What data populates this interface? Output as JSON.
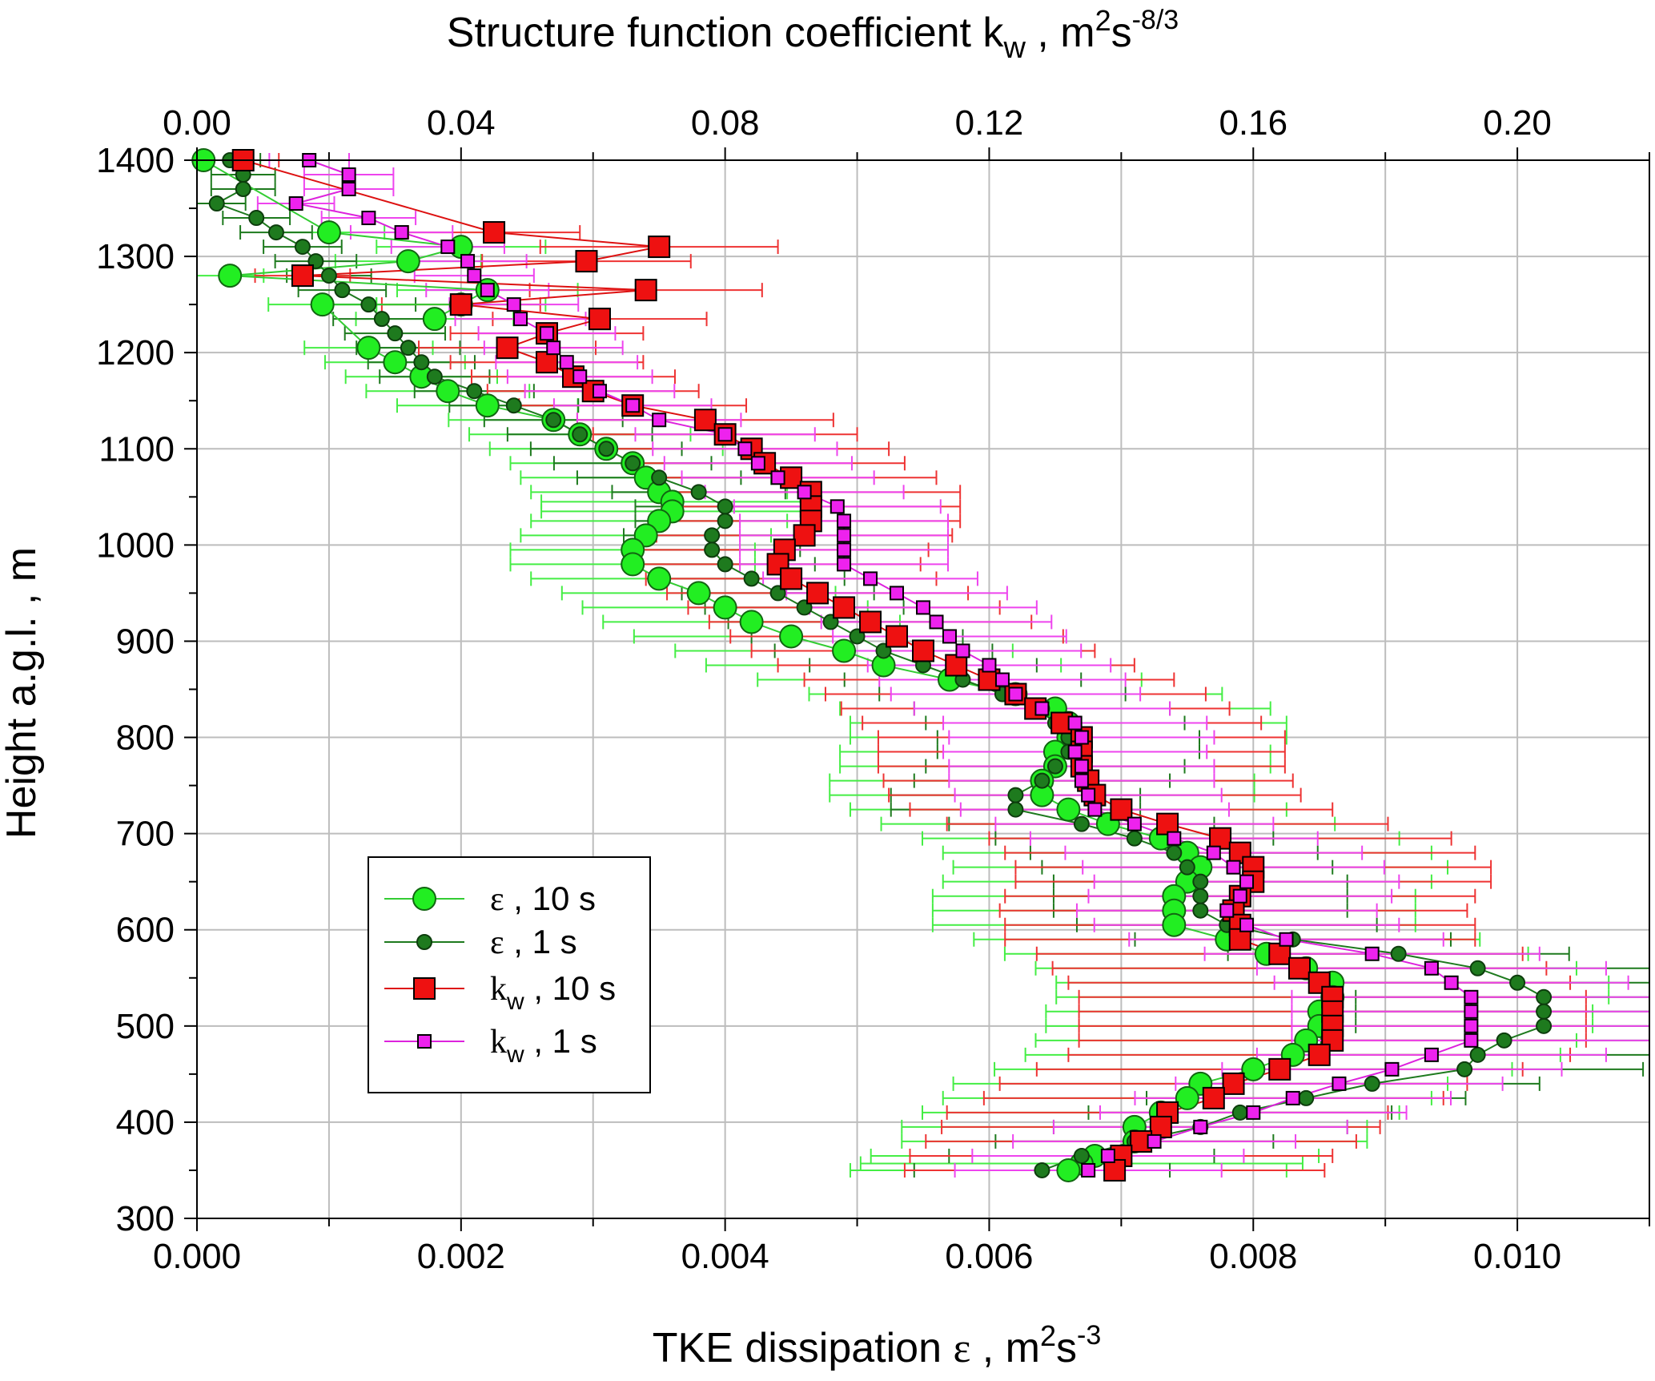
{
  "chart_data": {
    "type": "scatter",
    "top_axis": {
      "label_main": "Structure function coefficient k",
      "label_sub": "w",
      "label_unit_pre": " , m",
      "label_sup1": "2",
      "label_unit_mid": "s",
      "label_sup2": "-8/3",
      "xlim": [
        0.0,
        0.22
      ],
      "ticks": [
        "0.00",
        "0.04",
        "0.08",
        "0.12",
        "0.16",
        "0.20"
      ],
      "tick_values": [
        0.0,
        0.04,
        0.08,
        0.12,
        0.16,
        0.2
      ]
    },
    "bottom_axis": {
      "label_main": "TKE dissipation ",
      "label_symbol": "ε",
      "label_unit_pre": " , m",
      "label_sup1": "2",
      "label_unit_mid": "s",
      "label_sup2": "-3",
      "xlim": [
        0.0,
        0.011
      ],
      "ticks": [
        "0.000",
        "0.002",
        "0.004",
        "0.006",
        "0.008",
        "0.010"
      ],
      "tick_values": [
        0.0,
        0.002,
        0.004,
        0.006,
        0.008,
        0.01
      ]
    },
    "y_axis": {
      "label": "Height a.g.l. , m",
      "ylim": [
        300,
        1400
      ],
      "ticks": [
        "300",
        "400",
        "500",
        "600",
        "700",
        "800",
        "900",
        "1000",
        "1100",
        "1200",
        "1300",
        "1400"
      ],
      "tick_values": [
        300,
        400,
        500,
        600,
        700,
        800,
        900,
        1000,
        1100,
        1200,
        1300,
        1400
      ]
    },
    "grid": true,
    "legend_position": "lower-left",
    "series": [
      {
        "name": "ε , 10 s",
        "symbol": "ε",
        "sub": "",
        "suffix": " , 10 s",
        "axis": "bottom",
        "marker": "circle-large",
        "fill": "#22ee22",
        "line": "#33cc33",
        "error_color": "#44ee44",
        "error_frac": 0.22,
        "points": [
          [
            5e-05,
            1400
          ],
          [
            0.001,
            1325
          ],
          [
            0.002,
            1310
          ],
          [
            0.0016,
            1295
          ],
          [
            0.00025,
            1280
          ],
          [
            0.0022,
            1265
          ],
          [
            0.0018,
            1235
          ],
          [
            0.002,
            1250
          ],
          [
            0.00095,
            1250
          ],
          [
            0.0013,
            1205
          ],
          [
            0.0015,
            1190
          ],
          [
            0.0017,
            1175
          ],
          [
            0.0019,
            1160
          ],
          [
            0.0022,
            1145
          ],
          [
            0.0027,
            1130
          ],
          [
            0.0029,
            1115
          ],
          [
            0.0031,
            1100
          ],
          [
            0.0033,
            1085
          ],
          [
            0.0034,
            1070
          ],
          [
            0.0035,
            1055
          ],
          [
            0.0036,
            1045
          ],
          [
            0.0036,
            1035
          ],
          [
            0.0035,
            1025
          ],
          [
            0.0034,
            1010
          ],
          [
            0.0033,
            995
          ],
          [
            0.0033,
            980
          ],
          [
            0.0035,
            965
          ],
          [
            0.0038,
            950
          ],
          [
            0.004,
            935
          ],
          [
            0.0042,
            920
          ],
          [
            0.0045,
            905
          ],
          [
            0.0049,
            890
          ],
          [
            0.0052,
            875
          ],
          [
            0.0057,
            860
          ],
          [
            0.0062,
            845
          ],
          [
            0.0065,
            830
          ],
          [
            0.0066,
            815
          ],
          [
            0.0066,
            800
          ],
          [
            0.0065,
            785
          ],
          [
            0.0065,
            770
          ],
          [
            0.0064,
            755
          ],
          [
            0.0064,
            740
          ],
          [
            0.0066,
            725
          ],
          [
            0.0069,
            710
          ],
          [
            0.0073,
            695
          ],
          [
            0.0075,
            680
          ],
          [
            0.0076,
            665
          ],
          [
            0.0075,
            650
          ],
          [
            0.0074,
            635
          ],
          [
            0.0074,
            620
          ],
          [
            0.0074,
            605
          ],
          [
            0.0078,
            590
          ],
          [
            0.0081,
            575
          ],
          [
            0.0084,
            560
          ],
          [
            0.0086,
            545
          ],
          [
            0.0086,
            530
          ],
          [
            0.0085,
            515
          ],
          [
            0.0085,
            500
          ],
          [
            0.0084,
            485
          ],
          [
            0.0083,
            470
          ],
          [
            0.008,
            455
          ],
          [
            0.0076,
            440
          ],
          [
            0.0075,
            425
          ],
          [
            0.0073,
            410
          ],
          [
            0.0071,
            395
          ],
          [
            0.0071,
            380
          ],
          [
            0.0068,
            365
          ],
          [
            0.0067,
            357
          ],
          [
            0.0066,
            350
          ]
        ]
      },
      {
        "name": "ε , 1 s",
        "symbol": "ε",
        "sub": "",
        "suffix": " , 1 s",
        "axis": "bottom",
        "marker": "circle-small",
        "fill": "#1e7a1e",
        "line": "#1e7a1e",
        "error_color": "#1e7a1e",
        "error_frac": 0.12,
        "points": [
          [
            0.00025,
            1400
          ],
          [
            0.00035,
            1385
          ],
          [
            0.00035,
            1370
          ],
          [
            0.00015,
            1355
          ],
          [
            0.00045,
            1340
          ],
          [
            0.0006,
            1325
          ],
          [
            0.0008,
            1310
          ],
          [
            0.0009,
            1295
          ],
          [
            0.001,
            1280
          ],
          [
            0.0011,
            1265
          ],
          [
            0.0013,
            1250
          ],
          [
            0.0014,
            1235
          ],
          [
            0.0015,
            1220
          ],
          [
            0.0016,
            1205
          ],
          [
            0.0017,
            1190
          ],
          [
            0.0018,
            1175
          ],
          [
            0.0021,
            1160
          ],
          [
            0.0024,
            1145
          ],
          [
            0.0027,
            1130
          ],
          [
            0.0029,
            1115
          ],
          [
            0.0031,
            1100
          ],
          [
            0.0033,
            1085
          ],
          [
            0.0035,
            1070
          ],
          [
            0.0038,
            1055
          ],
          [
            0.004,
            1040
          ],
          [
            0.004,
            1025
          ],
          [
            0.0039,
            1010
          ],
          [
            0.0039,
            995
          ],
          [
            0.004,
            980
          ],
          [
            0.0042,
            965
          ],
          [
            0.0044,
            950
          ],
          [
            0.0046,
            935
          ],
          [
            0.0048,
            920
          ],
          [
            0.005,
            905
          ],
          [
            0.0052,
            890
          ],
          [
            0.0055,
            875
          ],
          [
            0.0058,
            860
          ],
          [
            0.0061,
            845
          ],
          [
            0.0064,
            830
          ],
          [
            0.0065,
            815
          ],
          [
            0.0066,
            800
          ],
          [
            0.0066,
            785
          ],
          [
            0.0065,
            770
          ],
          [
            0.0064,
            755
          ],
          [
            0.0062,
            740
          ],
          [
            0.0062,
            725
          ],
          [
            0.0067,
            710
          ],
          [
            0.0071,
            695
          ],
          [
            0.0074,
            680
          ],
          [
            0.0075,
            665
          ],
          [
            0.0076,
            650
          ],
          [
            0.0076,
            635
          ],
          [
            0.0076,
            620
          ],
          [
            0.0078,
            605
          ],
          [
            0.0083,
            590
          ],
          [
            0.0091,
            575
          ],
          [
            0.0097,
            560
          ],
          [
            0.01,
            545
          ],
          [
            0.0102,
            530
          ],
          [
            0.0102,
            515
          ],
          [
            0.0102,
            500
          ],
          [
            0.0099,
            485
          ],
          [
            0.0097,
            470
          ],
          [
            0.0096,
            455
          ],
          [
            0.0089,
            440
          ],
          [
            0.0084,
            425
          ],
          [
            0.0079,
            410
          ],
          [
            0.0076,
            395
          ],
          [
            0.0071,
            380
          ],
          [
            0.0067,
            365
          ],
          [
            0.0064,
            350
          ]
        ]
      },
      {
        "name": "kw , 10 s",
        "symbol": "k",
        "sub": "w",
        "suffix": " , 10 s",
        "axis": "top",
        "marker": "square-large",
        "fill": "#ee1111",
        "line": "#dd1111",
        "error_color": "#ee3333",
        "error_frac": 0.2,
        "points": [
          [
            0.007,
            1400
          ],
          [
            0.045,
            1325
          ],
          [
            0.07,
            1310
          ],
          [
            0.059,
            1295
          ],
          [
            0.016,
            1280
          ],
          [
            0.068,
            1265
          ],
          [
            0.04,
            1250
          ],
          [
            0.061,
            1235
          ],
          [
            0.053,
            1220
          ],
          [
            0.047,
            1205
          ],
          [
            0.053,
            1190
          ],
          [
            0.057,
            1175
          ],
          [
            0.06,
            1160
          ],
          [
            0.066,
            1145
          ],
          [
            0.077,
            1130
          ],
          [
            0.08,
            1115
          ],
          [
            0.084,
            1100
          ],
          [
            0.086,
            1085
          ],
          [
            0.09,
            1070
          ],
          [
            0.093,
            1055
          ],
          [
            0.093,
            1040
          ],
          [
            0.093,
            1025
          ],
          [
            0.092,
            1010
          ],
          [
            0.089,
            995
          ],
          [
            0.088,
            980
          ],
          [
            0.09,
            965
          ],
          [
            0.094,
            950
          ],
          [
            0.098,
            935
          ],
          [
            0.102,
            920
          ],
          [
            0.106,
            905
          ],
          [
            0.11,
            890
          ],
          [
            0.115,
            875
          ],
          [
            0.12,
            860
          ],
          [
            0.124,
            845
          ],
          [
            0.127,
            830
          ],
          [
            0.131,
            815
          ],
          [
            0.134,
            800
          ],
          [
            0.134,
            785
          ],
          [
            0.134,
            770
          ],
          [
            0.135,
            755
          ],
          [
            0.136,
            740
          ],
          [
            0.14,
            725
          ],
          [
            0.147,
            710
          ],
          [
            0.155,
            695
          ],
          [
            0.158,
            680
          ],
          [
            0.16,
            665
          ],
          [
            0.16,
            650
          ],
          [
            0.158,
            635
          ],
          [
            0.157,
            620
          ],
          [
            0.158,
            605
          ],
          [
            0.158,
            590
          ],
          [
            0.164,
            575
          ],
          [
            0.167,
            560
          ],
          [
            0.17,
            545
          ],
          [
            0.172,
            530
          ],
          [
            0.172,
            515
          ],
          [
            0.172,
            500
          ],
          [
            0.172,
            485
          ],
          [
            0.17,
            470
          ],
          [
            0.164,
            455
          ],
          [
            0.157,
            440
          ],
          [
            0.154,
            425
          ],
          [
            0.147,
            410
          ],
          [
            0.146,
            395
          ],
          [
            0.143,
            380
          ],
          [
            0.14,
            365
          ],
          [
            0.139,
            350
          ]
        ]
      },
      {
        "name": "kw , 1 s",
        "symbol": "k",
        "sub": "w",
        "suffix": " , 1 s",
        "axis": "top",
        "marker": "square-small",
        "fill": "#ee22ee",
        "line": "#dd22dd",
        "error_color": "#ee44ee",
        "error_frac": 0.12,
        "points": [
          [
            0.017,
            1400
          ],
          [
            0.023,
            1385
          ],
          [
            0.023,
            1370
          ],
          [
            0.015,
            1355
          ],
          [
            0.026,
            1340
          ],
          [
            0.031,
            1325
          ],
          [
            0.038,
            1310
          ],
          [
            0.041,
            1295
          ],
          [
            0.042,
            1280
          ],
          [
            0.044,
            1265
          ],
          [
            0.048,
            1250
          ],
          [
            0.049,
            1235
          ],
          [
            0.053,
            1220
          ],
          [
            0.054,
            1205
          ],
          [
            0.056,
            1190
          ],
          [
            0.058,
            1175
          ],
          [
            0.061,
            1160
          ],
          [
            0.066,
            1145
          ],
          [
            0.07,
            1130
          ],
          [
            0.08,
            1115
          ],
          [
            0.083,
            1100
          ],
          [
            0.085,
            1085
          ],
          [
            0.088,
            1070
          ],
          [
            0.092,
            1055
          ],
          [
            0.097,
            1040
          ],
          [
            0.098,
            1025
          ],
          [
            0.098,
            1010
          ],
          [
            0.098,
            995
          ],
          [
            0.098,
            980
          ],
          [
            0.102,
            965
          ],
          [
            0.106,
            950
          ],
          [
            0.11,
            935
          ],
          [
            0.112,
            920
          ],
          [
            0.114,
            905
          ],
          [
            0.116,
            890
          ],
          [
            0.12,
            875
          ],
          [
            0.122,
            860
          ],
          [
            0.124,
            845
          ],
          [
            0.128,
            830
          ],
          [
            0.133,
            815
          ],
          [
            0.134,
            800
          ],
          [
            0.133,
            785
          ],
          [
            0.134,
            770
          ],
          [
            0.134,
            755
          ],
          [
            0.135,
            740
          ],
          [
            0.136,
            725
          ],
          [
            0.142,
            710
          ],
          [
            0.148,
            695
          ],
          [
            0.154,
            680
          ],
          [
            0.157,
            665
          ],
          [
            0.159,
            650
          ],
          [
            0.158,
            635
          ],
          [
            0.156,
            620
          ],
          [
            0.159,
            605
          ],
          [
            0.165,
            590
          ],
          [
            0.178,
            575
          ],
          [
            0.187,
            560
          ],
          [
            0.19,
            545
          ],
          [
            0.193,
            530
          ],
          [
            0.193,
            515
          ],
          [
            0.193,
            500
          ],
          [
            0.193,
            485
          ],
          [
            0.187,
            470
          ],
          [
            0.181,
            455
          ],
          [
            0.173,
            440
          ],
          [
            0.166,
            425
          ],
          [
            0.16,
            410
          ],
          [
            0.152,
            395
          ],
          [
            0.145,
            380
          ],
          [
            0.138,
            365
          ],
          [
            0.135,
            350
          ]
        ]
      }
    ]
  }
}
